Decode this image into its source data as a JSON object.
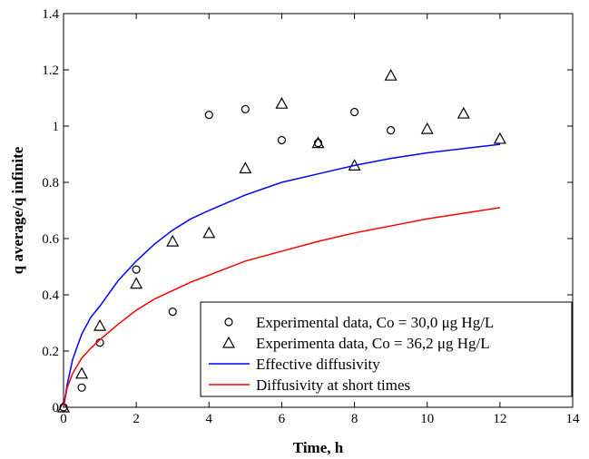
{
  "chart_data": {
    "type": "scatter",
    "title": "",
    "xlabel": "Time, h",
    "ylabel": "q average/q infinite",
    "xlim": [
      0,
      14
    ],
    "ylim": [
      0,
      1.4
    ],
    "x_ticks": [
      "0",
      "2",
      "4",
      "6",
      "8",
      "10",
      "12",
      "14"
    ],
    "y_ticks": [
      "0",
      "0.2",
      "0.4",
      "0.6",
      "0.8",
      "1",
      "1.2",
      "1.4"
    ],
    "grid": false,
    "legend_position": "bottom-right",
    "series": [
      {
        "name": "Experimental data, Co = 30,0 μg Hg/L",
        "kind": "marker",
        "marker": "circle",
        "color": "#000000",
        "x": [
          0,
          0.5,
          1,
          2,
          3,
          4,
          5,
          6,
          7,
          8,
          9
        ],
        "y": [
          0,
          0.07,
          0.23,
          0.49,
          0.34,
          1.04,
          1.06,
          0.95,
          0.94,
          1.05,
          0.985
        ]
      },
      {
        "name": "Experimenta data, Co = 36,2 μg Hg/L",
        "kind": "marker",
        "marker": "triangle",
        "color": "#000000",
        "x": [
          0,
          0.5,
          1,
          2,
          3,
          4,
          5,
          6,
          7,
          8,
          9,
          10,
          11,
          12
        ],
        "y": [
          0,
          0.12,
          0.29,
          0.44,
          0.59,
          0.62,
          0.85,
          1.08,
          0.94,
          0.86,
          1.18,
          0.99,
          1.045,
          0.955
        ]
      },
      {
        "name": "Effective diffusivity",
        "kind": "line",
        "color": "#0000ff",
        "x": [
          0,
          0.1,
          0.25,
          0.5,
          0.75,
          1,
          1.5,
          2,
          2.5,
          3,
          3.5,
          4,
          5,
          6,
          7,
          8,
          9,
          10,
          11,
          12
        ],
        "y": [
          0,
          0.08,
          0.17,
          0.26,
          0.32,
          0.36,
          0.45,
          0.52,
          0.58,
          0.63,
          0.67,
          0.7,
          0.755,
          0.8,
          0.83,
          0.86,
          0.885,
          0.905,
          0.92,
          0.935
        ]
      },
      {
        "name": "Diffusivity at short times",
        "kind": "line",
        "color": "#ff0000",
        "x": [
          0,
          0.1,
          0.25,
          0.5,
          0.75,
          1,
          1.5,
          2,
          2.5,
          3,
          3.5,
          4,
          5,
          6,
          7,
          8,
          9,
          10,
          11,
          12
        ],
        "y": [
          0,
          0.07,
          0.12,
          0.175,
          0.21,
          0.24,
          0.295,
          0.345,
          0.385,
          0.415,
          0.445,
          0.47,
          0.52,
          0.555,
          0.59,
          0.62,
          0.645,
          0.67,
          0.69,
          0.71
        ]
      }
    ]
  }
}
